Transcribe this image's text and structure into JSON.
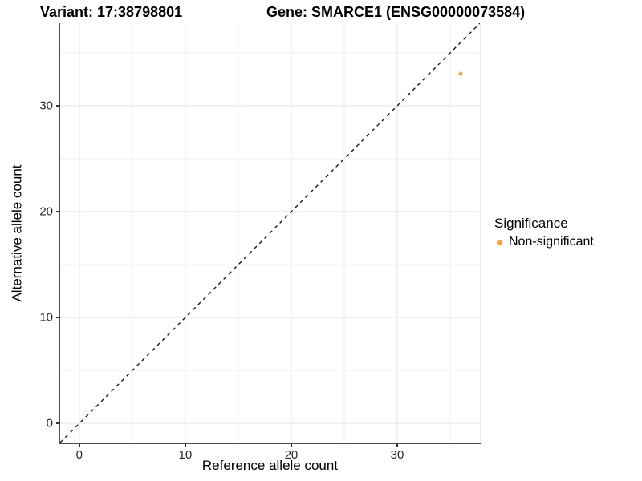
{
  "titles": {
    "variant": "Variant: 17:38798801",
    "gene": "Gene: SMARCE1 (ENSG00000073584)"
  },
  "chart_data": {
    "type": "scatter",
    "xlabel": "Reference allele count",
    "ylabel": "Alternative allele count",
    "xlim": [
      -1.8,
      37.8
    ],
    "ylim": [
      -1.8,
      37.8
    ],
    "x_major_ticks": [
      0,
      10,
      20,
      30
    ],
    "y_major_ticks": [
      0,
      10,
      20,
      30
    ],
    "x_minor_ticks": [
      5,
      15,
      25,
      35
    ],
    "y_minor_ticks": [
      5,
      15,
      25,
      35
    ],
    "grid": true,
    "points": [
      {
        "x": 36,
        "y": 33,
        "significance": "Non-significant"
      }
    ],
    "identity_line": {
      "style": "dashed",
      "from": [
        -1.8,
        -1.8
      ],
      "to": [
        37.8,
        37.8
      ]
    },
    "legend": {
      "title": "Significance",
      "position": "right",
      "entries": [
        {
          "label": "Non-significant",
          "color": "#F9A242"
        }
      ]
    }
  },
  "colors": {
    "point": "#F9A242",
    "grid_major": "#e3e3e3",
    "grid_minor": "#f2f2f2",
    "axis_line": "#4d4d4d",
    "dashed_line": "#1a1a1a",
    "background": "#ffffff"
  }
}
